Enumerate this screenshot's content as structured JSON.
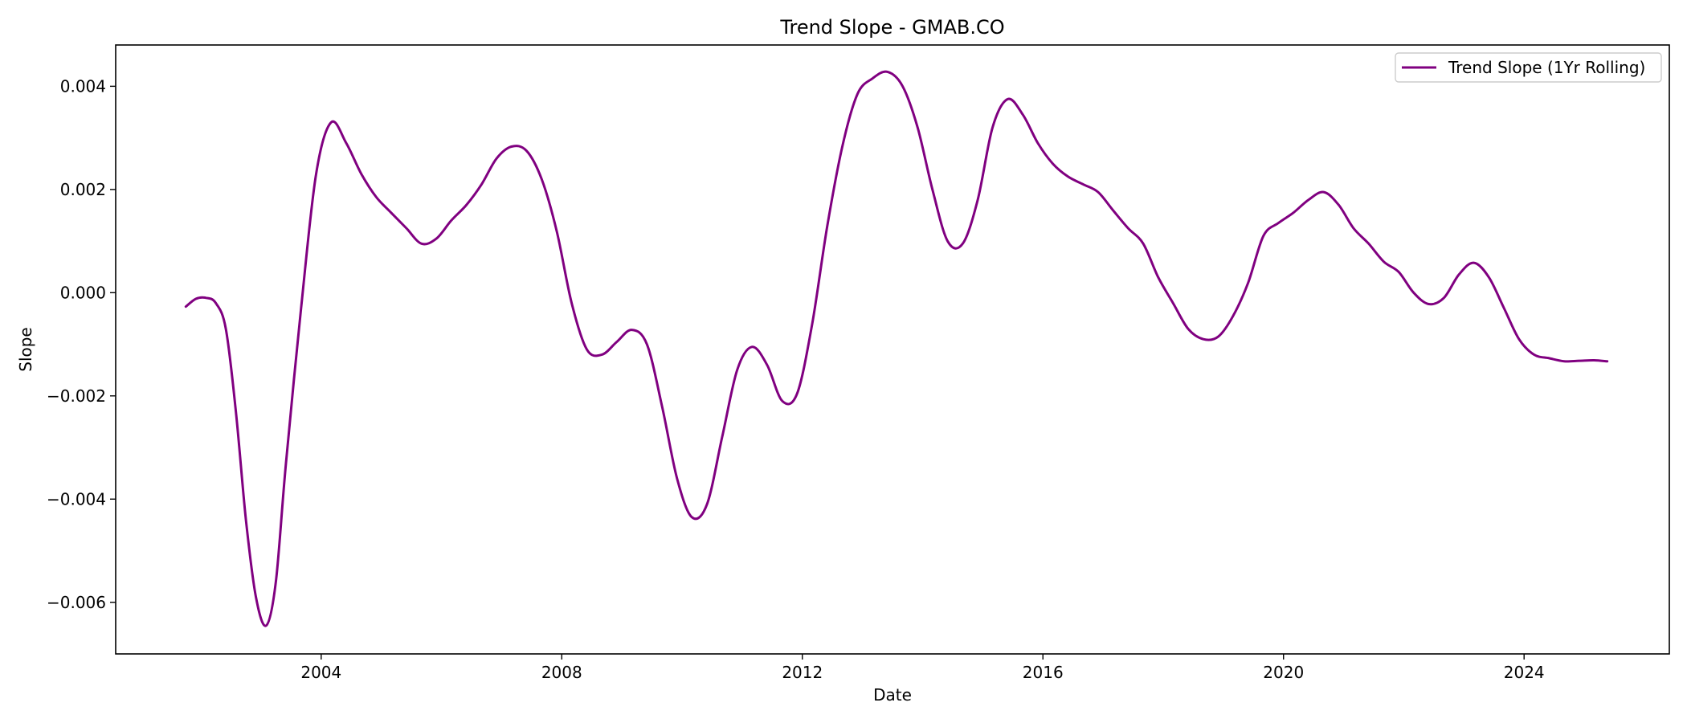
{
  "chart_data": {
    "type": "line",
    "title": "Trend Slope - GMAB.CO",
    "xlabel": "Date",
    "ylabel": "Slope",
    "xlim": [
      "2000-08-01",
      "2026-06-01"
    ],
    "ylim": [
      -0.007,
      0.0048
    ],
    "xticks": [
      {
        "date": "2004-01-01",
        "label": "2004"
      },
      {
        "date": "2008-01-01",
        "label": "2008"
      },
      {
        "date": "2012-01-01",
        "label": "2012"
      },
      {
        "date": "2016-01-01",
        "label": "2016"
      },
      {
        "date": "2020-01-01",
        "label": "2020"
      },
      {
        "date": "2024-01-01",
        "label": "2024"
      }
    ],
    "yticks": [
      {
        "value": 0.004,
        "label": "0.004"
      },
      {
        "value": 0.002,
        "label": "0.002"
      },
      {
        "value": 0.0,
        "label": "0.000"
      },
      {
        "value": -0.002,
        "label": "−0.002"
      },
      {
        "value": -0.004,
        "label": "−0.004"
      },
      {
        "value": -0.006,
        "label": "−0.006"
      }
    ],
    "grid": false,
    "legend_position": "top-right",
    "series": [
      {
        "name": "Trend Slope (1Yr Rolling)",
        "color": "#800080",
        "points": [
          [
            "2001-10-01",
            -0.00027
          ],
          [
            "2001-12-01",
            -0.00012
          ],
          [
            "2002-02-01",
            -0.0001
          ],
          [
            "2002-04-01",
            -0.0002
          ],
          [
            "2002-06-01",
            -0.0007
          ],
          [
            "2002-08-01",
            -0.0023
          ],
          [
            "2002-10-01",
            -0.0044
          ],
          [
            "2002-12-01",
            -0.0059
          ],
          [
            "2003-02-01",
            -0.00645
          ],
          [
            "2003-04-01",
            -0.0056
          ],
          [
            "2003-06-01",
            -0.0033
          ],
          [
            "2003-09-01",
            -0.0003
          ],
          [
            "2003-12-01",
            0.0023
          ],
          [
            "2004-03-01",
            0.0033
          ],
          [
            "2004-06-01",
            0.0029
          ],
          [
            "2004-09-01",
            0.0023
          ],
          [
            "2004-12-01",
            0.00185
          ],
          [
            "2005-03-01",
            0.00155
          ],
          [
            "2005-06-01",
            0.00125
          ],
          [
            "2005-09-01",
            0.00095
          ],
          [
            "2005-12-01",
            0.00105
          ],
          [
            "2006-03-01",
            0.0014
          ],
          [
            "2006-06-01",
            0.0017
          ],
          [
            "2006-09-01",
            0.0021
          ],
          [
            "2006-12-01",
            0.0026
          ],
          [
            "2007-03-01",
            0.00283
          ],
          [
            "2007-06-01",
            0.00275
          ],
          [
            "2007-09-01",
            0.0022
          ],
          [
            "2007-12-01",
            0.0012
          ],
          [
            "2008-03-01",
            -0.0002
          ],
          [
            "2008-06-01",
            -0.0011
          ],
          [
            "2008-09-01",
            -0.0012
          ],
          [
            "2008-12-01",
            -0.00095
          ],
          [
            "2009-03-01",
            -0.00072
          ],
          [
            "2009-06-01",
            -0.001
          ],
          [
            "2009-09-01",
            -0.0022
          ],
          [
            "2009-12-01",
            -0.0036
          ],
          [
            "2010-03-01",
            -0.00435
          ],
          [
            "2010-06-01",
            -0.0041
          ],
          [
            "2010-09-01",
            -0.0028
          ],
          [
            "2010-12-01",
            -0.0015
          ],
          [
            "2011-03-01",
            -0.00105
          ],
          [
            "2011-06-01",
            -0.0014
          ],
          [
            "2011-09-01",
            -0.0021
          ],
          [
            "2011-12-01",
            -0.00195
          ],
          [
            "2012-03-01",
            -0.0006
          ],
          [
            "2012-06-01",
            0.0013
          ],
          [
            "2012-09-01",
            0.00285
          ],
          [
            "2012-12-01",
            0.00385
          ],
          [
            "2013-03-01",
            0.00415
          ],
          [
            "2013-06-01",
            0.00428
          ],
          [
            "2013-09-01",
            0.004
          ],
          [
            "2013-12-01",
            0.0032
          ],
          [
            "2014-03-01",
            0.002
          ],
          [
            "2014-06-01",
            0.001
          ],
          [
            "2014-09-01",
            0.00095
          ],
          [
            "2014-12-01",
            0.0018
          ],
          [
            "2015-03-01",
            0.0032
          ],
          [
            "2015-06-01",
            0.00375
          ],
          [
            "2015-09-01",
            0.00345
          ],
          [
            "2015-12-01",
            0.0029
          ],
          [
            "2016-03-01",
            0.0025
          ],
          [
            "2016-06-01",
            0.00225
          ],
          [
            "2016-09-01",
            0.0021
          ],
          [
            "2016-12-01",
            0.00195
          ],
          [
            "2017-03-01",
            0.0016
          ],
          [
            "2017-06-01",
            0.00125
          ],
          [
            "2017-09-01",
            0.00095
          ],
          [
            "2017-12-01",
            0.0003
          ],
          [
            "2018-03-01",
            -0.0002
          ],
          [
            "2018-06-01",
            -0.0007
          ],
          [
            "2018-09-01",
            -0.0009
          ],
          [
            "2018-12-01",
            -0.00085
          ],
          [
            "2019-03-01",
            -0.00045
          ],
          [
            "2019-06-01",
            0.0002
          ],
          [
            "2019-09-01",
            0.0011
          ],
          [
            "2019-12-01",
            0.00135
          ],
          [
            "2020-03-01",
            0.00155
          ],
          [
            "2020-06-01",
            0.0018
          ],
          [
            "2020-09-01",
            0.00195
          ],
          [
            "2020-12-01",
            0.0017
          ],
          [
            "2021-03-01",
            0.00125
          ],
          [
            "2021-06-01",
            0.00095
          ],
          [
            "2021-09-01",
            0.0006
          ],
          [
            "2021-12-01",
            0.0004
          ],
          [
            "2022-03-01",
            0.0
          ],
          [
            "2022-06-01",
            -0.00022
          ],
          [
            "2022-09-01",
            -0.0001
          ],
          [
            "2022-12-01",
            0.00035
          ],
          [
            "2023-03-01",
            0.00058
          ],
          [
            "2023-06-01",
            0.0003
          ],
          [
            "2023-09-01",
            -0.0003
          ],
          [
            "2023-12-01",
            -0.0009
          ],
          [
            "2024-03-01",
            -0.0012
          ],
          [
            "2024-06-01",
            -0.00127
          ],
          [
            "2024-09-01",
            -0.00133
          ],
          [
            "2024-12-01",
            -0.00132
          ],
          [
            "2025-03-01",
            -0.00131
          ],
          [
            "2025-05-20",
            -0.00133
          ]
        ]
      }
    ]
  }
}
